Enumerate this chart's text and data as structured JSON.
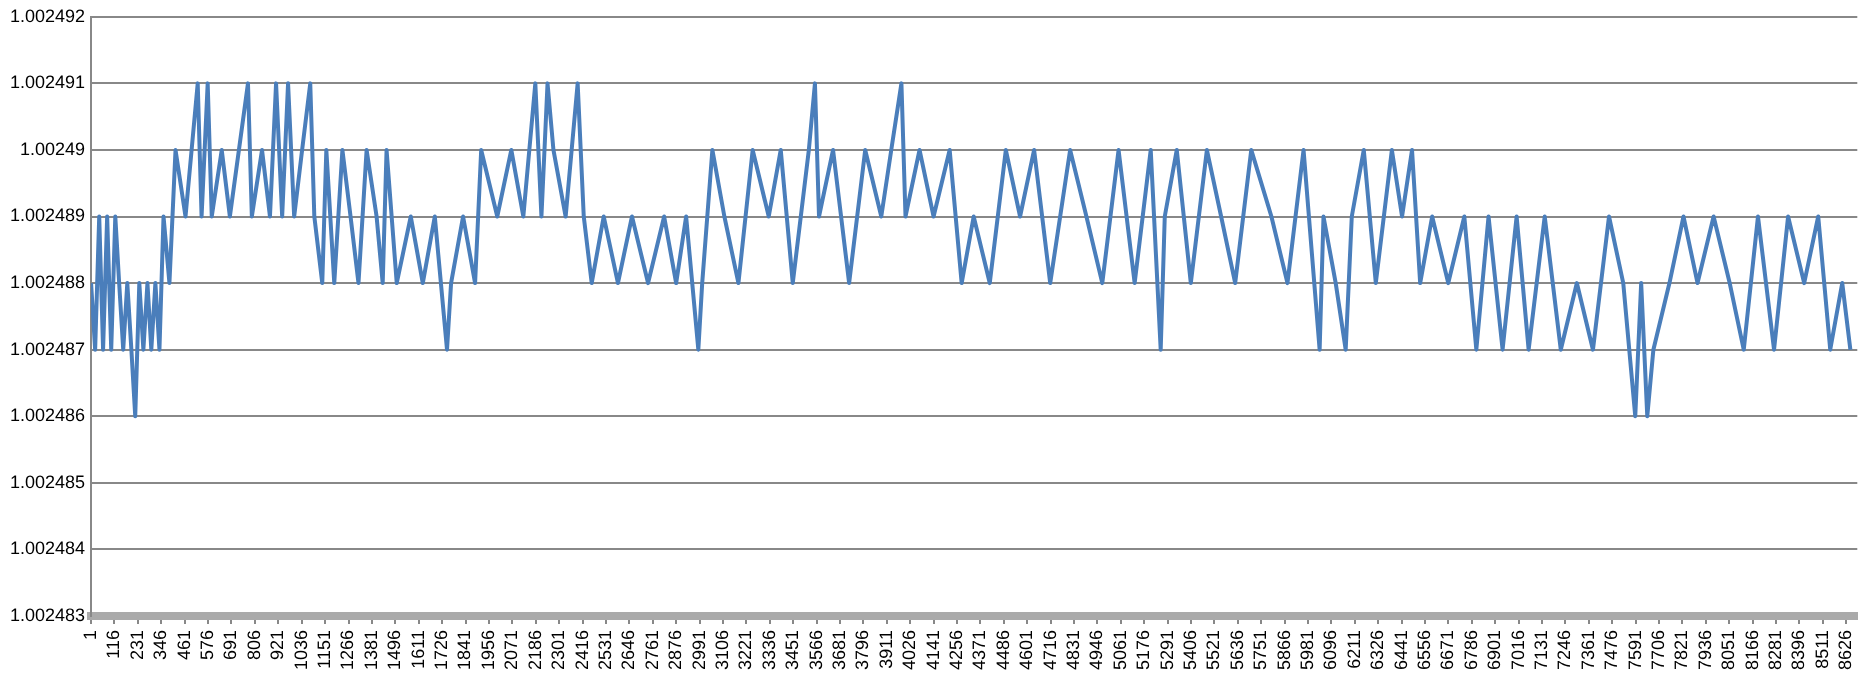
{
  "chart_data": {
    "type": "line",
    "xlim": [
      1,
      8680
    ],
    "xticks": [
      1,
      116,
      231,
      346,
      461,
      576,
      691,
      806,
      921,
      1036,
      1151,
      1266,
      1381,
      1496,
      1611,
      1726,
      1841,
      1956,
      2071,
      2186,
      2301,
      2416,
      2531,
      2646,
      2761,
      2876,
      2991,
      3106,
      3221,
      3336,
      3451,
      3566,
      3681,
      3796,
      3911,
      4026,
      4141,
      4256,
      4371,
      4486,
      4601,
      4716,
      4831,
      4946,
      5061,
      5176,
      5291,
      5406,
      5521,
      5636,
      5751,
      5866,
      5981,
      6096,
      6211,
      6326,
      6441,
      6556,
      6671,
      6786,
      6901,
      7016,
      7131,
      7246,
      7361,
      7476,
      7591,
      7706,
      7821,
      7936,
      8051,
      8166,
      8281,
      8396,
      8511,
      8626
    ],
    "ylim": [
      1.002483,
      1.002492
    ],
    "yticks": [
      1.002483,
      1.002484,
      1.002485,
      1.002486,
      1.002487,
      1.002488,
      1.002489,
      1.00249,
      1.002491,
      1.002492
    ],
    "grid": "y",
    "legend": false,
    "marker": "none",
    "line_style": "solid",
    "series": [
      {
        "color": "#4a7ebb",
        "x": [
          1,
          21,
          41,
          60,
          80,
          100,
          120,
          139,
          159,
          179,
          199,
          218,
          238,
          258,
          278,
          297,
          317,
          337,
          357,
          386,
          416,
          465,
          525,
          544,
          574,
          594,
          643,
          683,
          772,
          791,
          841,
          880,
          910,
          940,
          969,
          999,
          1038,
          1078,
          1098,
          1137,
          1157,
          1196,
          1236,
          1276,
          1315,
          1355,
          1404,
          1434,
          1453,
          1503,
          1572,
          1631,
          1690,
          1750,
          1770,
          1829,
          1888,
          1918,
          1997,
          2066,
          2125,
          2184,
          2214,
          2244,
          2273,
          2333,
          2392,
          2422,
          2461,
          2520,
          2590,
          2659,
          2738,
          2817,
          2876,
          2925,
          2985,
          3004,
          3054,
          3113,
          3182,
          3252,
          3331,
          3390,
          3449,
          3528,
          3558,
          3578,
          3647,
          3726,
          3805,
          3884,
          3933,
          3983,
          4003,
          4072,
          4141,
          4220,
          4279,
          4338,
          4417,
          4496,
          4566,
          4635,
          4714,
          4812,
          4892,
          4970,
          5050,
          5129,
          5208,
          5257,
          5277,
          5336,
          5405,
          5484,
          5554,
          5623,
          5702,
          5801,
          5880,
          5959,
          6038,
          6057,
          6117,
          6166,
          6196,
          6255,
          6314,
          6393,
          6443,
          6492,
          6532,
          6591,
          6670,
          6749,
          6808,
          6868,
          6937,
          7006,
          7065,
          7144,
          7223,
          7302,
          7381,
          7460,
          7530,
          7589,
          7618,
          7648,
          7678,
          7757,
          7826,
          7895,
          7974,
          8053,
          8122,
          8192,
          8271,
          8340,
          8419,
          8488,
          8547,
          8606,
          8646
        ],
        "values": [
          1.002488,
          1.002487,
          1.002489,
          1.002487,
          1.002489,
          1.002487,
          1.002489,
          1.002488,
          1.002487,
          1.002488,
          1.002487,
          1.002486,
          1.002488,
          1.002487,
          1.002488,
          1.002487,
          1.002488,
          1.002487,
          1.002489,
          1.002488,
          1.00249,
          1.002489,
          1.002491,
          1.002489,
          1.002491,
          1.002489,
          1.00249,
          1.002489,
          1.002491,
          1.002489,
          1.00249,
          1.002489,
          1.002491,
          1.002489,
          1.002491,
          1.002489,
          1.00249,
          1.002491,
          1.002489,
          1.002488,
          1.00249,
          1.002488,
          1.00249,
          1.002489,
          1.002488,
          1.00249,
          1.002489,
          1.002488,
          1.00249,
          1.002488,
          1.002489,
          1.002488,
          1.002489,
          1.002487,
          1.002488,
          1.002489,
          1.002488,
          1.00249,
          1.002489,
          1.00249,
          1.002489,
          1.002491,
          1.002489,
          1.002491,
          1.00249,
          1.002489,
          1.002491,
          1.002489,
          1.002488,
          1.002489,
          1.002488,
          1.002489,
          1.002488,
          1.002489,
          1.002488,
          1.002489,
          1.002487,
          1.002488,
          1.00249,
          1.002489,
          1.002488,
          1.00249,
          1.002489,
          1.00249,
          1.002488,
          1.00249,
          1.002491,
          1.002489,
          1.00249,
          1.002488,
          1.00249,
          1.002489,
          1.00249,
          1.002491,
          1.002489,
          1.00249,
          1.002489,
          1.00249,
          1.002488,
          1.002489,
          1.002488,
          1.00249,
          1.002489,
          1.00249,
          1.002488,
          1.00249,
          1.002489,
          1.002488,
          1.00249,
          1.002488,
          1.00249,
          1.002487,
          1.002489,
          1.00249,
          1.002488,
          1.00249,
          1.002489,
          1.002488,
          1.00249,
          1.002489,
          1.002488,
          1.00249,
          1.002487,
          1.002489,
          1.002488,
          1.002487,
          1.002489,
          1.00249,
          1.002488,
          1.00249,
          1.002489,
          1.00249,
          1.002488,
          1.002489,
          1.002488,
          1.002489,
          1.002487,
          1.002489,
          1.002487,
          1.002489,
          1.002487,
          1.002489,
          1.002487,
          1.002488,
          1.002487,
          1.002489,
          1.002488,
          1.002486,
          1.002488,
          1.002486,
          1.002487,
          1.002488,
          1.002489,
          1.002488,
          1.002489,
          1.002488,
          1.002487,
          1.002489,
          1.002487,
          1.002489,
          1.002488,
          1.002489,
          1.002487,
          1.002488,
          1.002487
        ]
      }
    ]
  }
}
